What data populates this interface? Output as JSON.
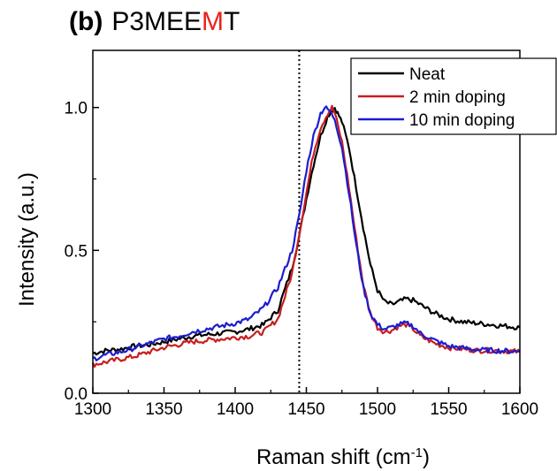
{
  "title": {
    "label": "(b)",
    "name_before": "P3MEE",
    "name_highlight": "M",
    "name_after": "T",
    "highlight_color": "#e8211c"
  },
  "chart_data": {
    "type": "line",
    "xlabel": "Raman shift (cm",
    "xlabel_superscript": "-1",
    "xlabel_suffix": ")",
    "ylabel": "Intensity (a.u.)",
    "xlim": [
      1300,
      1600
    ],
    "ylim": [
      0.0,
      1.2
    ],
    "x_ticks": [
      1300,
      1350,
      1400,
      1450,
      1500,
      1550,
      1600
    ],
    "x_tick_labels": [
      "1300",
      "1350",
      "1400",
      "1450",
      "1500",
      "1550",
      "1600"
    ],
    "y_ticks": [
      0.0,
      0.5,
      1.0
    ],
    "y_tick_labels": [
      "0.0",
      "0.5",
      "1.0"
    ],
    "grid": false,
    "legend_position": "top-right",
    "reference_line": {
      "x": 1445,
      "style": "dotted"
    },
    "series": [
      {
        "name": "Neat",
        "color": "#000000",
        "points": [
          [
            1300,
            0.14
          ],
          [
            1310,
            0.15
          ],
          [
            1320,
            0.155
          ],
          [
            1330,
            0.165
          ],
          [
            1340,
            0.17
          ],
          [
            1350,
            0.18
          ],
          [
            1360,
            0.19
          ],
          [
            1370,
            0.2
          ],
          [
            1380,
            0.205
          ],
          [
            1390,
            0.21
          ],
          [
            1400,
            0.215
          ],
          [
            1410,
            0.225
          ],
          [
            1420,
            0.24
          ],
          [
            1430,
            0.29
          ],
          [
            1440,
            0.44
          ],
          [
            1445,
            0.55
          ],
          [
            1450,
            0.68
          ],
          [
            1455,
            0.8
          ],
          [
            1460,
            0.9
          ],
          [
            1465,
            0.97
          ],
          [
            1468,
            0.99
          ],
          [
            1470,
            1.0
          ],
          [
            1472,
            0.98
          ],
          [
            1475,
            0.95
          ],
          [
            1480,
            0.86
          ],
          [
            1485,
            0.72
          ],
          [
            1490,
            0.58
          ],
          [
            1495,
            0.45
          ],
          [
            1500,
            0.36
          ],
          [
            1505,
            0.32
          ],
          [
            1510,
            0.31
          ],
          [
            1515,
            0.32
          ],
          [
            1520,
            0.33
          ],
          [
            1525,
            0.325
          ],
          [
            1530,
            0.31
          ],
          [
            1540,
            0.28
          ],
          [
            1550,
            0.26
          ],
          [
            1560,
            0.25
          ],
          [
            1570,
            0.245
          ],
          [
            1580,
            0.24
          ],
          [
            1590,
            0.235
          ],
          [
            1600,
            0.23
          ]
        ]
      },
      {
        "name": "2 min doping",
        "color": "#c81e1e",
        "points": [
          [
            1300,
            0.1
          ],
          [
            1310,
            0.11
          ],
          [
            1320,
            0.12
          ],
          [
            1330,
            0.13
          ],
          [
            1340,
            0.145
          ],
          [
            1350,
            0.16
          ],
          [
            1360,
            0.17
          ],
          [
            1370,
            0.18
          ],
          [
            1380,
            0.185
          ],
          [
            1390,
            0.19
          ],
          [
            1400,
            0.195
          ],
          [
            1410,
            0.2
          ],
          [
            1420,
            0.215
          ],
          [
            1430,
            0.26
          ],
          [
            1440,
            0.42
          ],
          [
            1445,
            0.56
          ],
          [
            1450,
            0.7
          ],
          [
            1455,
            0.84
          ],
          [
            1460,
            0.93
          ],
          [
            1465,
            0.98
          ],
          [
            1468,
            1.0
          ],
          [
            1470,
            0.98
          ],
          [
            1475,
            0.88
          ],
          [
            1480,
            0.72
          ],
          [
            1485,
            0.54
          ],
          [
            1490,
            0.38
          ],
          [
            1495,
            0.28
          ],
          [
            1500,
            0.23
          ],
          [
            1505,
            0.215
          ],
          [
            1510,
            0.22
          ],
          [
            1515,
            0.235
          ],
          [
            1520,
            0.24
          ],
          [
            1525,
            0.225
          ],
          [
            1530,
            0.2
          ],
          [
            1540,
            0.175
          ],
          [
            1550,
            0.16
          ],
          [
            1560,
            0.155
          ],
          [
            1570,
            0.15
          ],
          [
            1580,
            0.15
          ],
          [
            1590,
            0.148
          ],
          [
            1600,
            0.145
          ]
        ]
      },
      {
        "name": "10 min doping",
        "color": "#1c1cd0",
        "points": [
          [
            1300,
            0.12
          ],
          [
            1310,
            0.135
          ],
          [
            1320,
            0.145
          ],
          [
            1330,
            0.16
          ],
          [
            1340,
            0.175
          ],
          [
            1350,
            0.19
          ],
          [
            1360,
            0.2
          ],
          [
            1370,
            0.215
          ],
          [
            1380,
            0.225
          ],
          [
            1390,
            0.235
          ],
          [
            1400,
            0.245
          ],
          [
            1410,
            0.26
          ],
          [
            1420,
            0.3
          ],
          [
            1430,
            0.37
          ],
          [
            1440,
            0.5
          ],
          [
            1445,
            0.62
          ],
          [
            1450,
            0.78
          ],
          [
            1455,
            0.9
          ],
          [
            1460,
            0.98
          ],
          [
            1463,
            1.0
          ],
          [
            1466,
            0.99
          ],
          [
            1470,
            0.96
          ],
          [
            1475,
            0.86
          ],
          [
            1480,
            0.7
          ],
          [
            1485,
            0.52
          ],
          [
            1490,
            0.37
          ],
          [
            1495,
            0.28
          ],
          [
            1500,
            0.24
          ],
          [
            1505,
            0.225
          ],
          [
            1510,
            0.23
          ],
          [
            1515,
            0.24
          ],
          [
            1520,
            0.245
          ],
          [
            1525,
            0.235
          ],
          [
            1530,
            0.21
          ],
          [
            1540,
            0.185
          ],
          [
            1550,
            0.165
          ],
          [
            1560,
            0.158
          ],
          [
            1570,
            0.152
          ],
          [
            1580,
            0.15
          ],
          [
            1590,
            0.148
          ],
          [
            1600,
            0.146
          ]
        ]
      }
    ]
  }
}
